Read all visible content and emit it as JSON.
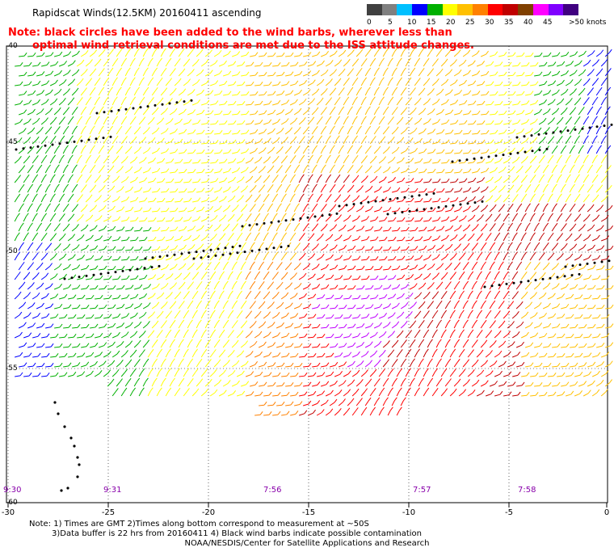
{
  "title": "Rapidscat Winds(12.5KM) 20160411 ascending",
  "note": {
    "line1": "Note: black circles have been added to the wind barbs, wherever less than",
    "line2": "optimal wind retrieval conditions are met due to the ISS attitude changes."
  },
  "legend": {
    "colors": [
      "#404040",
      "#808080",
      "#00c0ff",
      "#0000ff",
      "#00b000",
      "#ffff00",
      "#ffc000",
      "#ff8000",
      "#ff0000",
      "#c00000",
      "#804000",
      "#ff00ff",
      "#8000ff",
      "#400080"
    ],
    "labels": [
      "0",
      "5",
      "10",
      "15",
      "20",
      "25",
      "30",
      "35",
      "40",
      "45",
      ">50 knots"
    ]
  },
  "axes": {
    "lon_ticks": [
      "-30",
      "-25",
      "-20",
      "-15",
      "-10",
      "-5",
      "0"
    ],
    "lat_ticks": [
      "-40",
      "-45",
      "-50",
      "-55",
      "-60"
    ]
  },
  "times": [
    "9:30",
    "9:31",
    "7:56",
    "7:57",
    "7:58"
  ],
  "footer": {
    "note1": "Note: 1) Times are GMT 2)Times along bottom correspond to measurement at ~50S",
    "note2": "3)Data buffer is 22 hrs from 20160411 4) Black wind barbs indicate possible contamination",
    "credit": "NOAA/NESDIS/Center for Satellite Applications and Research"
  }
}
